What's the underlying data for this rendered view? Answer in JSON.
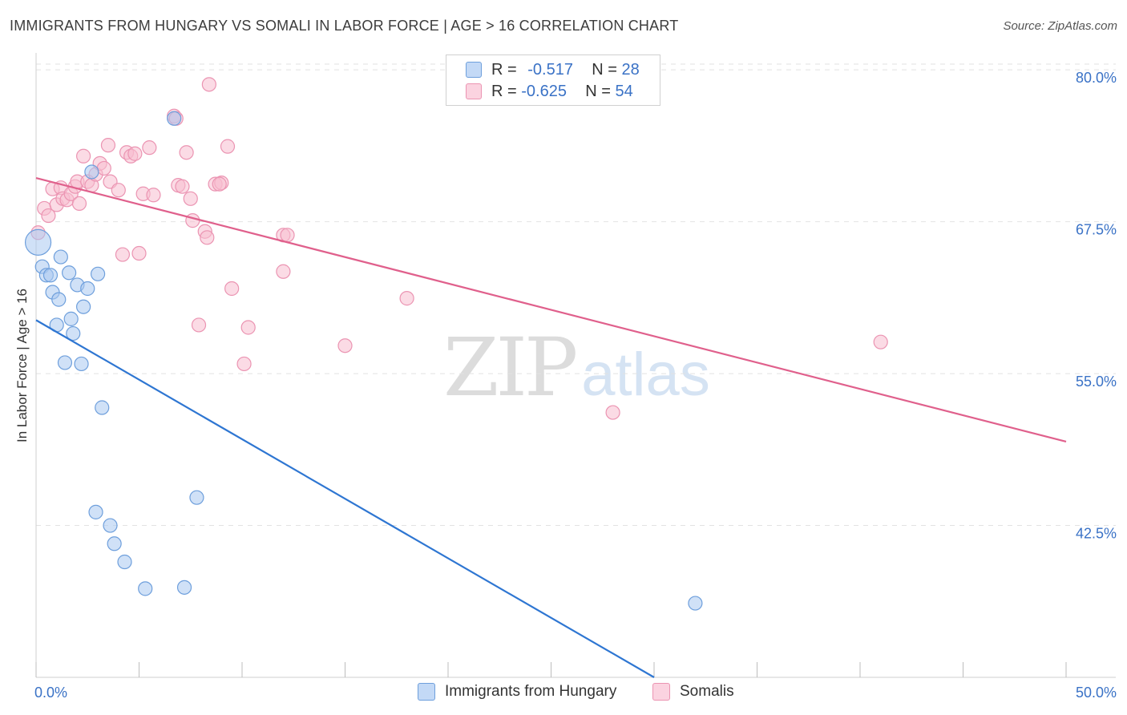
{
  "title": "IMMIGRANTS FROM HUNGARY VS SOMALI IN LABOR FORCE | AGE > 16 CORRELATION CHART",
  "source": "Source: ZipAtlas.com",
  "watermark": {
    "zip": "ZIP",
    "atlas": "atlas"
  },
  "legend": {
    "rows": [
      {
        "r_label": "R =",
        "r_value": "-0.517",
        "n_label": "N =",
        "n_value": "28"
      },
      {
        "r_label": "R =",
        "r_value": "-0.625",
        "n_label": "N =",
        "n_value": "54"
      }
    ]
  },
  "bottom_legend": [
    "Immigrants from Hungary",
    "Somalis"
  ],
  "colors": {
    "hungary_fill": "#a9c8f0",
    "hungary_stroke": "#6e9fdc",
    "hungary_line": "#2e76d2",
    "somali_fill": "#f7bed0",
    "somali_stroke": "#eb94b2",
    "somali_line": "#e0608c",
    "tick_label": "#3a72c6",
    "grid": "#e2e2e2"
  },
  "chart_data": {
    "type": "scatter",
    "title": "IMMIGRANTS FROM HUNGARY VS SOMALI IN LABOR FORCE | AGE > 16 CORRELATION CHART",
    "xlabel": "",
    "ylabel": "In Labor Force | Age > 16",
    "xlim": [
      0,
      50
    ],
    "ylim": [
      30,
      81
    ],
    "x_tick_labels": [
      "0.0%",
      "50.0%"
    ],
    "y_ticks": [
      42.5,
      55.0,
      67.5,
      80.0
    ],
    "y_tick_labels": [
      "42.5%",
      "55.0%",
      "67.5%",
      "80.0%"
    ],
    "grid": true,
    "series": [
      {
        "name": "Immigrants from Hungary",
        "R": -0.517,
        "N": 28,
        "points": [
          [
            0.1,
            65.8
          ],
          [
            0.3,
            63.8
          ],
          [
            0.5,
            63.1
          ],
          [
            0.7,
            63.1
          ],
          [
            0.8,
            61.7
          ],
          [
            1.0,
            59.0
          ],
          [
            1.1,
            61.1
          ],
          [
            1.2,
            64.6
          ],
          [
            1.4,
            55.9
          ],
          [
            1.6,
            63.3
          ],
          [
            1.7,
            59.5
          ],
          [
            1.8,
            58.3
          ],
          [
            2.0,
            62.3
          ],
          [
            2.2,
            55.8
          ],
          [
            2.3,
            60.5
          ],
          [
            2.5,
            62.0
          ],
          [
            2.7,
            71.6
          ],
          [
            3.0,
            63.2
          ],
          [
            3.2,
            52.2
          ],
          [
            2.9,
            43.6
          ],
          [
            3.6,
            42.5
          ],
          [
            3.8,
            41.0
          ],
          [
            4.3,
            39.5
          ],
          [
            5.3,
            37.3
          ],
          [
            6.7,
            76.0
          ],
          [
            7.2,
            37.4
          ],
          [
            7.8,
            44.8
          ],
          [
            32.0,
            36.1
          ]
        ],
        "trend": {
          "x": [
            0,
            30.0
          ],
          "y": [
            59.4,
            30.0
          ]
        }
      },
      {
        "name": "Somalis",
        "R": -0.625,
        "N": 54,
        "points": [
          [
            0.1,
            66.6
          ],
          [
            0.4,
            68.6
          ],
          [
            0.6,
            68.0
          ],
          [
            0.8,
            70.2
          ],
          [
            1.0,
            68.9
          ],
          [
            1.2,
            70.3
          ],
          [
            1.3,
            69.4
          ],
          [
            1.5,
            69.3
          ],
          [
            1.7,
            69.8
          ],
          [
            1.9,
            70.4
          ],
          [
            2.0,
            70.8
          ],
          [
            2.1,
            69.0
          ],
          [
            2.3,
            72.9
          ],
          [
            2.5,
            70.8
          ],
          [
            2.7,
            70.5
          ],
          [
            2.9,
            71.4
          ],
          [
            3.1,
            72.3
          ],
          [
            3.3,
            71.9
          ],
          [
            3.5,
            73.8
          ],
          [
            3.6,
            70.8
          ],
          [
            4.0,
            70.1
          ],
          [
            4.2,
            64.8
          ],
          [
            4.4,
            73.2
          ],
          [
            4.6,
            72.9
          ],
          [
            4.8,
            73.1
          ],
          [
            5.0,
            64.9
          ],
          [
            5.2,
            69.8
          ],
          [
            5.5,
            73.6
          ],
          [
            5.7,
            69.7
          ],
          [
            6.7,
            76.2
          ],
          [
            6.8,
            76.0
          ],
          [
            6.9,
            70.5
          ],
          [
            7.1,
            70.4
          ],
          [
            7.3,
            73.2
          ],
          [
            7.5,
            69.4
          ],
          [
            7.6,
            67.6
          ],
          [
            7.9,
            59.0
          ],
          [
            8.2,
            66.7
          ],
          [
            8.3,
            66.2
          ],
          [
            8.4,
            78.8
          ],
          [
            8.7,
            70.6
          ],
          [
            9.0,
            70.7
          ],
          [
            9.3,
            73.7
          ],
          [
            9.5,
            62.0
          ],
          [
            10.3,
            58.8
          ],
          [
            10.1,
            55.8
          ],
          [
            12.0,
            66.4
          ],
          [
            12.2,
            66.4
          ],
          [
            12.0,
            63.4
          ],
          [
            15.0,
            57.3
          ],
          [
            18.0,
            61.2
          ],
          [
            28.0,
            51.8
          ],
          [
            41.0,
            57.6
          ],
          [
            8.9,
            70.6
          ]
        ],
        "trend": {
          "x": [
            0,
            50
          ],
          "y": [
            71.1,
            49.4
          ]
        }
      }
    ]
  }
}
